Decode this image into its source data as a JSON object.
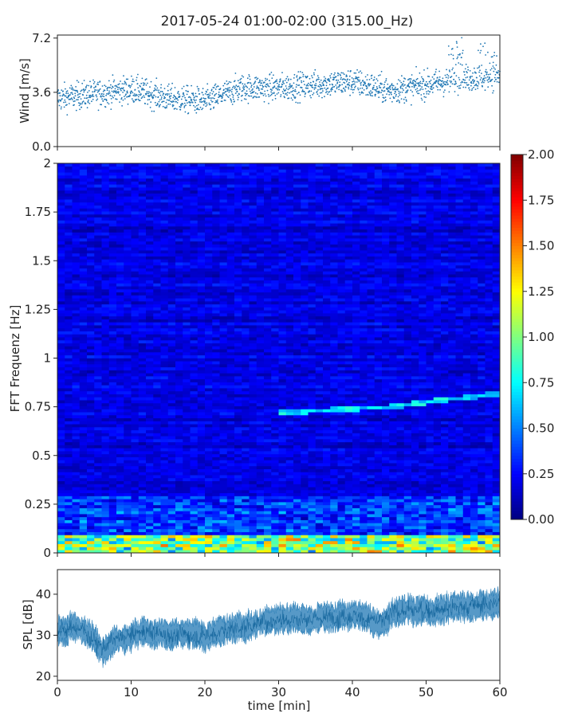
{
  "chart_data": [
    {
      "type": "scatter",
      "panel": "wind",
      "title": "2017-05-24 01:00-02:00 (315.00_Hz)",
      "ylabel": "Wind [m/s]",
      "xlabel": "",
      "xlim": [
        0,
        60
      ],
      "ylim": [
        0.0,
        7.4
      ],
      "yticks": [
        "0.0",
        "3.6",
        "7.2"
      ],
      "ytick_values": [
        0.0,
        3.6,
        7.2
      ],
      "color": "#1f77b4",
      "trend": {
        "x": [
          0,
          5,
          10,
          15,
          20,
          25,
          30,
          35,
          40,
          45,
          50,
          55,
          60
        ],
        "y": [
          3.2,
          3.5,
          3.8,
          3.2,
          3.0,
          3.9,
          3.9,
          4.1,
          4.3,
          3.7,
          4.1,
          4.5,
          4.7
        ]
      },
      "spread": 0.8
    },
    {
      "type": "heatmap",
      "panel": "spectrogram",
      "ylabel": "FFT Frequenz [Hz]",
      "xlim": [
        0,
        60
      ],
      "ylim": [
        0,
        2
      ],
      "yticks": [
        "0",
        "0.25",
        "0.5",
        "0.75",
        "1",
        "1.25",
        "1.5",
        "1.75",
        "2"
      ],
      "ytick_values": [
        0,
        0.25,
        0.5,
        0.75,
        1,
        1.25,
        1.5,
        1.75,
        2
      ],
      "colormap": "jet",
      "colorbar_range": [
        0.0,
        2.0
      ],
      "colorbar_ticks": [
        "0.00",
        "0.25",
        "0.50",
        "0.75",
        "1.00",
        "1.25",
        "1.50",
        "1.75",
        "2.00"
      ],
      "colorbar_tick_values": [
        0.0,
        0.25,
        0.5,
        0.75,
        1.0,
        1.25,
        1.5,
        1.75,
        2.0
      ],
      "features": [
        {
          "kind": "low-frequency band",
          "freq_range": [
            0,
            0.1
          ],
          "level": 0.9
        },
        {
          "kind": "rising tonal line",
          "x": [
            30,
            45,
            60
          ],
          "freq": [
            0.72,
            0.75,
            0.82
          ],
          "level": 0.75
        }
      ],
      "background_level": 0.2
    },
    {
      "type": "area",
      "panel": "spl",
      "ylabel": "SPL [dB]",
      "xlabel": "time [min]",
      "xlim": [
        0,
        60
      ],
      "ylim": [
        19,
        46
      ],
      "yticks": [
        "20",
        "30",
        "40"
      ],
      "ytick_values": [
        20,
        30,
        40
      ],
      "xticks": [
        "0",
        "10",
        "20",
        "30",
        "40",
        "50",
        "60"
      ],
      "xtick_values": [
        0,
        10,
        20,
        30,
        40,
        50,
        60
      ],
      "color": "#1f77b4",
      "trend": {
        "x": [
          0,
          3,
          6,
          8,
          12,
          15,
          20,
          25,
          30,
          35,
          40,
          44,
          46,
          50,
          55,
          60
        ],
        "y": [
          31,
          32,
          27,
          29,
          31,
          30,
          30,
          32,
          34,
          34,
          35,
          33,
          36,
          36,
          37,
          38
        ]
      },
      "band_halfwidth": 3
    }
  ]
}
